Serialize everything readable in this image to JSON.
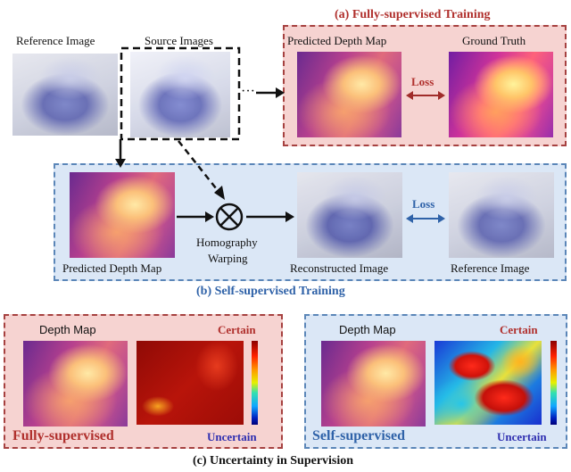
{
  "panel_a": {
    "title": "(a) Fully-supervised Training",
    "predicted_label": "Predicted Depth Map",
    "gt_label": "Ground Truth",
    "loss_label": "Loss"
  },
  "inputs": {
    "reference_label": "Reference Image",
    "source_label": "Source Images",
    "ellipsis": "···"
  },
  "panel_b": {
    "title": "(b) Self-supervised Training",
    "predicted_label": "Predicted Depth Map",
    "warp_label_line1": "Homography",
    "warp_label_line2": "Warping",
    "reconstructed_label": "Reconstructed Image",
    "reference_label": "Reference Image",
    "loss_label": "Loss"
  },
  "panel_c": {
    "title": "(c) Uncertainty in Supervision",
    "left": {
      "depth_label": "Depth Map",
      "certain": "Certain",
      "uncertain": "Uncertain",
      "mode": "Fully-supervised"
    },
    "right": {
      "depth_label": "Depth Map",
      "certain": "Certain",
      "uncertain": "Uncertain",
      "mode": "Self-supervised"
    }
  },
  "colors": {
    "red_accent": "#b0302d",
    "blue_accent": "#2f62a8",
    "red_panel": "#f6d3d1",
    "blue_panel": "#dbe7f6"
  }
}
